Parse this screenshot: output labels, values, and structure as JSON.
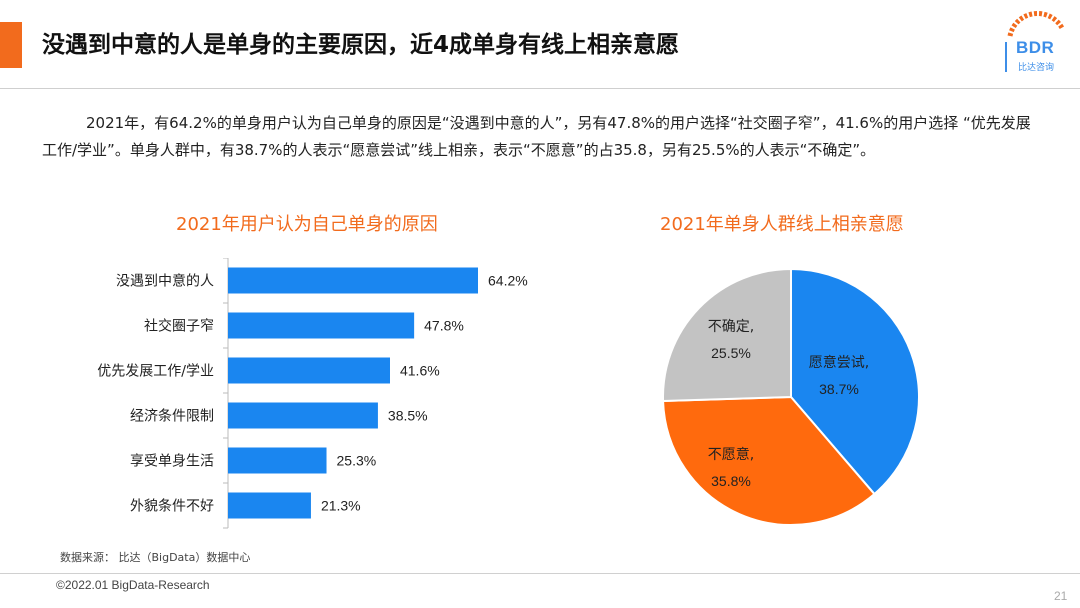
{
  "header": {
    "title": "没遇到中意的人是单身的主要原因，近4成单身有线上相亲意愿",
    "logo_text": "BDR",
    "logo_sub": "比达咨询",
    "accent_color": "#f26b1d"
  },
  "paragraph": {
    "text": "2021年，有64.2%的单身用户认为自己单身的原因是“没遇到中意的人”，另有47.8%的用户选择“社交圈子窄”，41.6%的用户选择 “优先发展工作/学业”。单身人群中，有38.7%的人表示“愿意尝试”线上相亲，表示“不愿意”的占35.8，另有25.5%的人表示“不确定”。"
  },
  "chart_data": [
    {
      "type": "bar",
      "orientation": "horizontal",
      "title": "2021年用户认为自己单身的原因",
      "categories": [
        "没遇到中意的人",
        "社交圈子窄",
        "优先发展工作/学业",
        "经济条件限制",
        "享受单身生活",
        "外貌条件不好"
      ],
      "values": [
        64.2,
        47.8,
        41.6,
        38.5,
        25.3,
        21.3
      ],
      "labels": [
        "64.2%",
        "47.8%",
        "41.6%",
        "38.5%",
        "25.3%",
        "21.3%"
      ],
      "unit": "%",
      "color": "#1a86f0",
      "grid": false
    },
    {
      "type": "pie",
      "title": "2021年单身人群线上相亲意愿",
      "slices": [
        {
          "name": "愿意尝试,",
          "value": 38.7,
          "label": "38.7%",
          "color": "#1a86f0"
        },
        {
          "name": "不愿意,",
          "value": 35.8,
          "label": "35.8%",
          "color": "#ff6a0d"
        },
        {
          "name": "不确定,",
          "value": 25.5,
          "label": "25.5%",
          "color": "#c3c3c3"
        }
      ]
    }
  ],
  "footer": {
    "source": "数据来源： 比达（BigData）数据中心",
    "copyright": "©2022.01 BigData-Research",
    "page_number": "21"
  }
}
